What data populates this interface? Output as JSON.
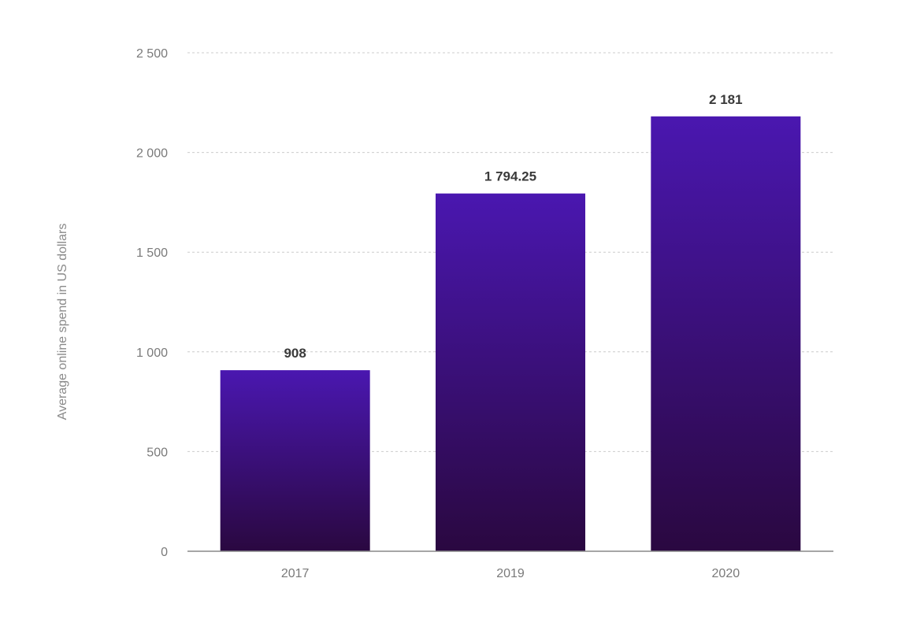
{
  "chart_data": {
    "type": "bar",
    "categories": [
      "2017",
      "2019",
      "2020"
    ],
    "values": [
      908,
      1794.25,
      2181
    ],
    "data_labels": [
      "908",
      "1 794.25",
      "2 181"
    ],
    "ylabel": "Average online spend in US dollars",
    "xlabel": "",
    "ylim": [
      0,
      2500
    ],
    "yticks": [
      0,
      500,
      1000,
      1500,
      2000,
      2500
    ],
    "ytick_labels": [
      "0",
      "500",
      "1 000",
      "1 500",
      "2 000",
      "2 500"
    ],
    "grid": true,
    "legend": "none",
    "colors": {
      "bar_top": "#4a17b0",
      "bar_bottom": "#2a0840",
      "grid": "#cccccc",
      "axis": "#888888"
    }
  }
}
